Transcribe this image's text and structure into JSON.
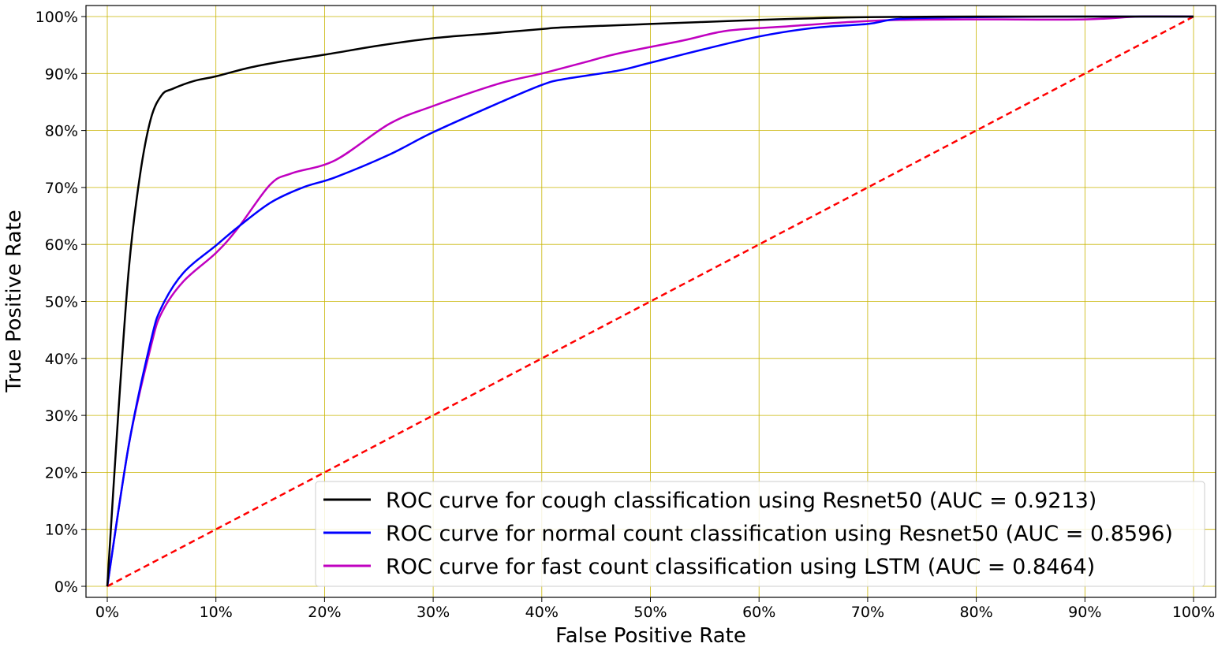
{
  "chart_data": {
    "type": "line",
    "xlabel": "False Positive Rate",
    "ylabel": "True Positive Rate",
    "xlim": [
      0,
      1
    ],
    "ylim": [
      0,
      1
    ],
    "xticks": [
      0,
      0.1,
      0.2,
      0.3,
      0.4,
      0.5,
      0.6,
      0.7,
      0.8,
      0.9,
      1.0
    ],
    "xtick_labels": [
      "0%",
      "10%",
      "20%",
      "30%",
      "40%",
      "50%",
      "60%",
      "70%",
      "80%",
      "90%",
      "100%"
    ],
    "yticks": [
      0,
      0.1,
      0.2,
      0.3,
      0.4,
      0.5,
      0.6,
      0.7,
      0.8,
      0.9,
      1.0
    ],
    "ytick_labels": [
      "0%",
      "10%",
      "20%",
      "30%",
      "40%",
      "50%",
      "60%",
      "70%",
      "80%",
      "90%",
      "100%"
    ],
    "grid": true,
    "grid_color": "#c8b400",
    "legend_position": "lower-right",
    "series": [
      {
        "name": "ROC curve for cough classification using Resnet50 (AUC = 0.9213)",
        "color": "#000000",
        "style": "solid",
        "x": [
          0,
          0.01,
          0.02,
          0.03,
          0.04,
          0.05,
          0.06,
          0.08,
          0.1,
          0.13,
          0.16,
          0.2,
          0.25,
          0.3,
          0.35,
          0.4,
          0.42,
          0.5,
          0.6,
          0.65,
          0.7,
          0.8,
          0.9,
          0.95,
          1.0
        ],
        "y": [
          0,
          0.3,
          0.56,
          0.72,
          0.82,
          0.862,
          0.873,
          0.887,
          0.895,
          0.91,
          0.921,
          0.933,
          0.949,
          0.962,
          0.97,
          0.978,
          0.981,
          0.987,
          0.994,
          0.997,
          0.999,
          1.0,
          1.0,
          1.0,
          1.0
        ]
      },
      {
        "name": "ROC curve for normal count classification using Resnet50 (AUC = 0.8596)",
        "color": "#0000ff",
        "style": "solid",
        "x": [
          0,
          0.02,
          0.04,
          0.05,
          0.07,
          0.1,
          0.12,
          0.15,
          0.18,
          0.21,
          0.26,
          0.3,
          0.36,
          0.4,
          0.42,
          0.47,
          0.5,
          0.55,
          0.6,
          0.65,
          0.7,
          0.73,
          0.8,
          0.9,
          1.0
        ],
        "y": [
          0,
          0.25,
          0.43,
          0.49,
          0.55,
          0.598,
          0.63,
          0.673,
          0.7,
          0.718,
          0.758,
          0.797,
          0.848,
          0.88,
          0.89,
          0.905,
          0.919,
          0.943,
          0.965,
          0.98,
          0.987,
          0.996,
          0.999,
          1.0,
          1.0
        ]
      },
      {
        "name": "ROC curve for fast count classification using LSTM (AUC = 0.8464)",
        "color": "#c000c0",
        "style": "solid",
        "x": [
          0,
          0.02,
          0.04,
          0.05,
          0.07,
          0.1,
          0.12,
          0.15,
          0.17,
          0.21,
          0.26,
          0.3,
          0.36,
          0.4,
          0.44,
          0.47,
          0.53,
          0.57,
          0.62,
          0.68,
          0.73,
          0.8,
          0.9,
          0.95,
          1.0
        ],
        "y": [
          0,
          0.25,
          0.42,
          0.48,
          0.535,
          0.585,
          0.628,
          0.705,
          0.725,
          0.748,
          0.812,
          0.843,
          0.882,
          0.9,
          0.92,
          0.935,
          0.958,
          0.975,
          0.982,
          0.99,
          0.994,
          0.995,
          0.995,
          1.0,
          1.0
        ]
      },
      {
        "name": "",
        "color": "#ff0000",
        "style": "dashed",
        "x": [
          0,
          1
        ],
        "y": [
          0,
          1
        ]
      }
    ]
  }
}
